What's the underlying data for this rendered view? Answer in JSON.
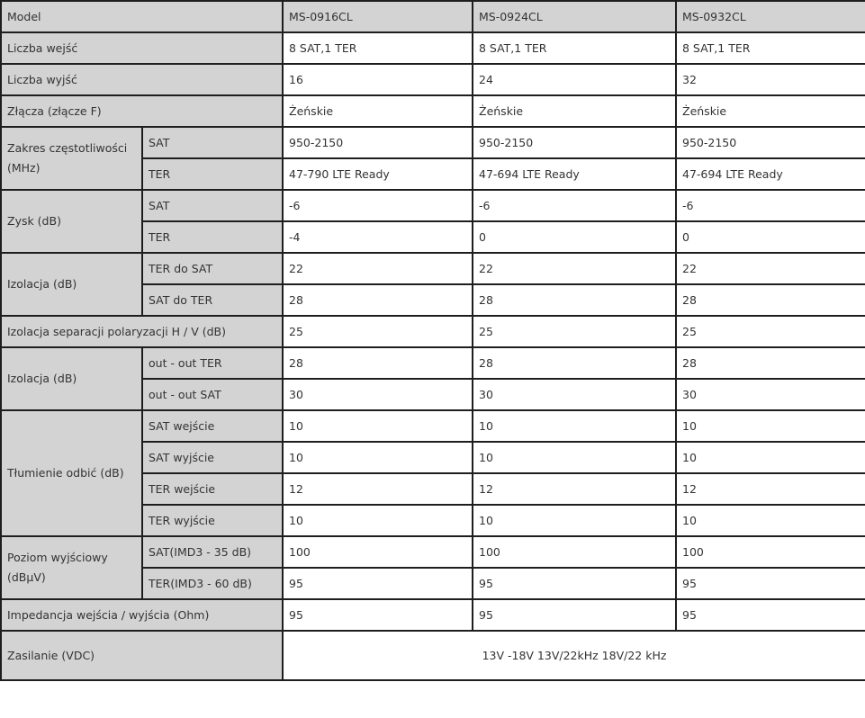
{
  "header": {
    "label": "Model",
    "models": [
      "MS-0916CL",
      "MS-0924CL",
      "MS-0932CL"
    ]
  },
  "rows": [
    {
      "label": "Liczba wejść",
      "values": [
        "8 SAT,1 TER",
        "8 SAT,1 TER",
        "8 SAT,1 TER"
      ]
    },
    {
      "label": "Liczba wyjść",
      "values": [
        "16",
        "24",
        "32"
      ]
    },
    {
      "label": "Złącza (złącze F)",
      "values": [
        "Żeńskie",
        "Żeńskie",
        "Żeńskie"
      ]
    },
    {
      "label": "Zakres częstotliwości (MHz)",
      "sub": [
        {
          "label": "SAT",
          "values": [
            "950-2150",
            "950-2150",
            "950-2150"
          ]
        },
        {
          "label": "TER",
          "values": [
            "47-790 LTE Ready",
            "47-694 LTE Ready",
            "47-694 LTE Ready"
          ]
        }
      ]
    },
    {
      "label": "Zysk (dB)",
      "sub": [
        {
          "label": "SAT",
          "values": [
            "-6",
            "-6",
            "-6"
          ]
        },
        {
          "label": "TER",
          "values": [
            "-4",
            "0",
            "0"
          ]
        }
      ]
    },
    {
      "label": "Izolacja (dB)",
      "sub": [
        {
          "label": "TER do SAT",
          "values": [
            "22",
            "22",
            "22"
          ]
        },
        {
          "label": "SAT do TER",
          "values": [
            "28",
            "28",
            "28"
          ]
        }
      ]
    },
    {
      "label": "Izolacja separacji polaryzacji H / V (dB)",
      "values": [
        "25",
        "25",
        "25"
      ]
    },
    {
      "label": "Izolacja (dB)",
      "sub": [
        {
          "label": "out - out TER",
          "values": [
            "28",
            "28",
            "28"
          ]
        },
        {
          "label": "out - out SAT",
          "values": [
            "30",
            "30",
            "30"
          ]
        }
      ]
    },
    {
      "label": "Tłumienie odbić (dB)",
      "sub": [
        {
          "label": "SAT wejście",
          "values": [
            "10",
            "10",
            "10"
          ]
        },
        {
          "label": "SAT wyjście",
          "values": [
            "10",
            "10",
            "10"
          ]
        },
        {
          "label": "TER wejście",
          "values": [
            "12",
            "12",
            "12"
          ]
        },
        {
          "label": "TER wyjście",
          "values": [
            "10",
            "10",
            "10"
          ]
        }
      ]
    },
    {
      "label": "Poziom wyjściowy (dBμV)",
      "sub": [
        {
          "label": "SAT(IMD3 - 35 dB)",
          "values": [
            "100",
            "100",
            "100"
          ]
        },
        {
          "label": "TER(IMD3 - 60 dB)",
          "values": [
            "95",
            "95",
            "95"
          ]
        }
      ]
    },
    {
      "label": "Impedancja wejścia / wyjścia (Ohm)",
      "values": [
        "95",
        "95",
        "95"
      ]
    },
    {
      "label": "Zasilanie (VDC)",
      "merged": "13V -18V 13V/22kHz 18V/22 kHz"
    }
  ]
}
